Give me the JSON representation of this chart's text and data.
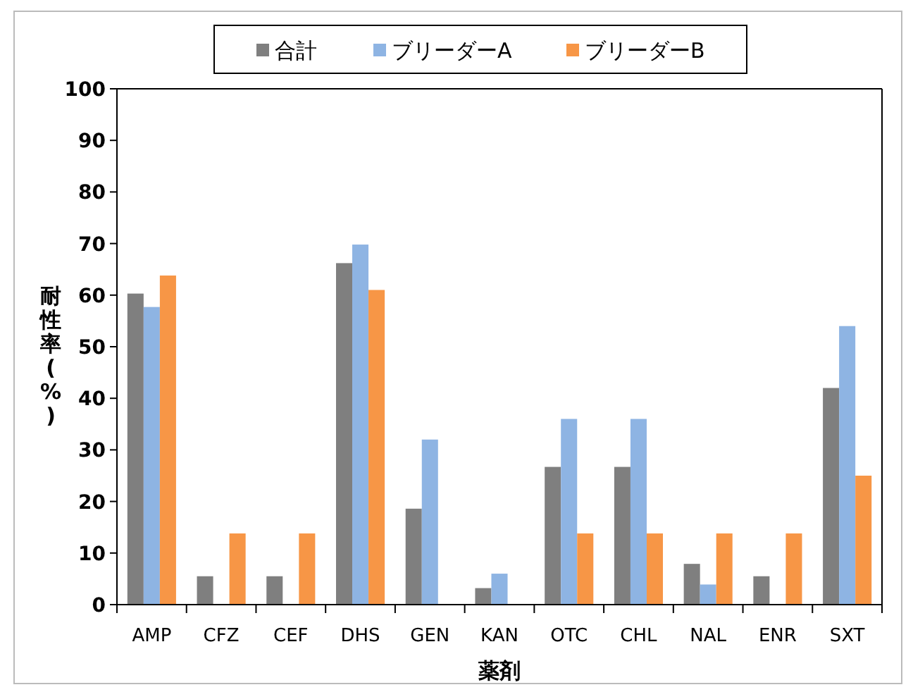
{
  "chart_data": {
    "type": "bar",
    "xlabel": "薬剤",
    "ylabel": "耐性率(%)",
    "categories": [
      "AMP",
      "CFZ",
      "CEF",
      "DHS",
      "GEN",
      "KAN",
      "OTC",
      "CHL",
      "NAL",
      "ENR",
      "SXT"
    ],
    "series": [
      {
        "name": "合計",
        "color": "#7f7f7f",
        "values": [
          60.3,
          5.5,
          5.5,
          66.2,
          18.6,
          3.2,
          26.7,
          26.7,
          7.9,
          5.5,
          42
        ]
      },
      {
        "name": "ブリーダーA",
        "color": "#8eb4e3",
        "values": [
          57.7,
          0,
          0,
          69.8,
          32,
          6,
          36,
          36,
          3.9,
          0,
          54
        ]
      },
      {
        "name": "ブリーダーB",
        "color": "#f79646",
        "values": [
          63.8,
          13.8,
          13.8,
          61,
          0,
          0,
          13.8,
          13.8,
          13.8,
          13.8,
          25
        ]
      }
    ],
    "ylim": [
      0,
      100
    ],
    "yticks": [
      0,
      10,
      20,
      30,
      40,
      50,
      60,
      70,
      80,
      90,
      100
    ],
    "grid": false,
    "legend": "top"
  }
}
